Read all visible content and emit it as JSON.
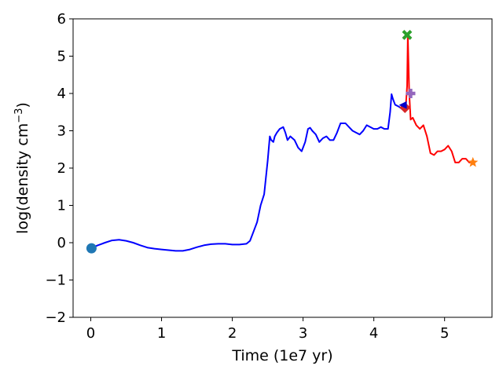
{
  "chart_data": {
    "type": "line",
    "title": "",
    "xlabel": "Time (1e7 yr)",
    "ylabel_prefix": "log(density cm",
    "ylabel_exp": "−3",
    "ylabel_suffix": ")",
    "xlim": [
      -0.25,
      5.67
    ],
    "ylim": [
      -2,
      6
    ],
    "xticks": [
      0,
      1,
      2,
      3,
      4,
      5
    ],
    "xtick_labels": [
      "0",
      "1",
      "2",
      "3",
      "4",
      "5"
    ],
    "yticks": [
      -2,
      -1,
      0,
      1,
      2,
      3,
      4,
      5,
      6
    ],
    "ytick_labels": [
      "−2",
      "−1",
      "0",
      "1",
      "2",
      "3",
      "4",
      "5",
      "6"
    ],
    "grid": false,
    "legend": "none",
    "series": [
      {
        "color": "#0000ff",
        "x": [
          0.0,
          0.1,
          0.2,
          0.3,
          0.4,
          0.5,
          0.6,
          0.7,
          0.8,
          0.9,
          1.0,
          1.1,
          1.2,
          1.3,
          1.4,
          1.5,
          1.6,
          1.7,
          1.8,
          1.9,
          2.0,
          2.1,
          2.2,
          2.25,
          2.3,
          2.35,
          2.4,
          2.45,
          2.5,
          2.53,
          2.55,
          2.58,
          2.6,
          2.63,
          2.67,
          2.72,
          2.75,
          2.78,
          2.82,
          2.85,
          2.88,
          2.93,
          2.98,
          3.03,
          3.07,
          3.1,
          3.13,
          3.18,
          3.23,
          3.28,
          3.33,
          3.38,
          3.43,
          3.48,
          3.53,
          3.6,
          3.65,
          3.7,
          3.75,
          3.8,
          3.85,
          3.9,
          3.95,
          4.0,
          4.05,
          4.1,
          4.15,
          4.2,
          4.23,
          4.25,
          4.27,
          4.3,
          4.35,
          4.4,
          4.43,
          4.45,
          4.47,
          4.48
        ],
        "y": [
          -0.15,
          -0.07,
          0.0,
          0.06,
          0.08,
          0.05,
          0.0,
          -0.07,
          -0.13,
          -0.16,
          -0.18,
          -0.2,
          -0.22,
          -0.22,
          -0.18,
          -0.12,
          -0.07,
          -0.04,
          -0.03,
          -0.03,
          -0.05,
          -0.05,
          -0.03,
          0.05,
          0.3,
          0.55,
          1.0,
          1.3,
          2.2,
          2.85,
          2.75,
          2.7,
          2.85,
          2.95,
          3.05,
          3.1,
          2.95,
          2.75,
          2.85,
          2.8,
          2.75,
          2.55,
          2.45,
          2.7,
          3.05,
          3.08,
          3.0,
          2.9,
          2.7,
          2.8,
          2.85,
          2.75,
          2.75,
          2.95,
          3.2,
          3.2,
          3.1,
          3.0,
          2.95,
          2.9,
          3.0,
          3.15,
          3.1,
          3.05,
          3.05,
          3.1,
          3.05,
          3.05,
          3.5,
          3.98,
          3.85,
          3.7,
          3.65,
          3.58,
          3.72,
          3.68,
          3.65,
          3.65
        ]
      },
      {
        "color": "#ff0000",
        "x": [
          4.45,
          4.47,
          4.48,
          4.5,
          4.52,
          4.55,
          4.6,
          4.65,
          4.7,
          4.75,
          4.8,
          4.85,
          4.9,
          4.95,
          5.0,
          5.05,
          5.1,
          5.15,
          5.2,
          5.25,
          5.3,
          5.35,
          5.4
        ],
        "y": [
          3.62,
          4.2,
          5.55,
          4.0,
          3.3,
          3.35,
          3.15,
          3.05,
          3.15,
          2.85,
          2.4,
          2.35,
          2.45,
          2.45,
          2.5,
          2.6,
          2.45,
          2.15,
          2.15,
          2.25,
          2.25,
          2.15,
          2.15
        ]
      }
    ],
    "markers": [
      {
        "shape": "circle",
        "color": "#1f77b4",
        "x": 0.01,
        "y": -0.15
      },
      {
        "shape": "diamond",
        "color": "#d62728",
        "x": 4.44,
        "y": 3.62
      },
      {
        "shape": "triangle-left",
        "color": "#0000cc",
        "x": 4.41,
        "y": 3.69
      },
      {
        "shape": "plus",
        "color": "#9467bd",
        "x": 4.52,
        "y": 4.0
      },
      {
        "shape": "x",
        "color": "#2ca02c",
        "x": 4.47,
        "y": 5.57
      },
      {
        "shape": "star",
        "color": "#ff7f0e",
        "x": 5.4,
        "y": 2.15
      }
    ]
  }
}
